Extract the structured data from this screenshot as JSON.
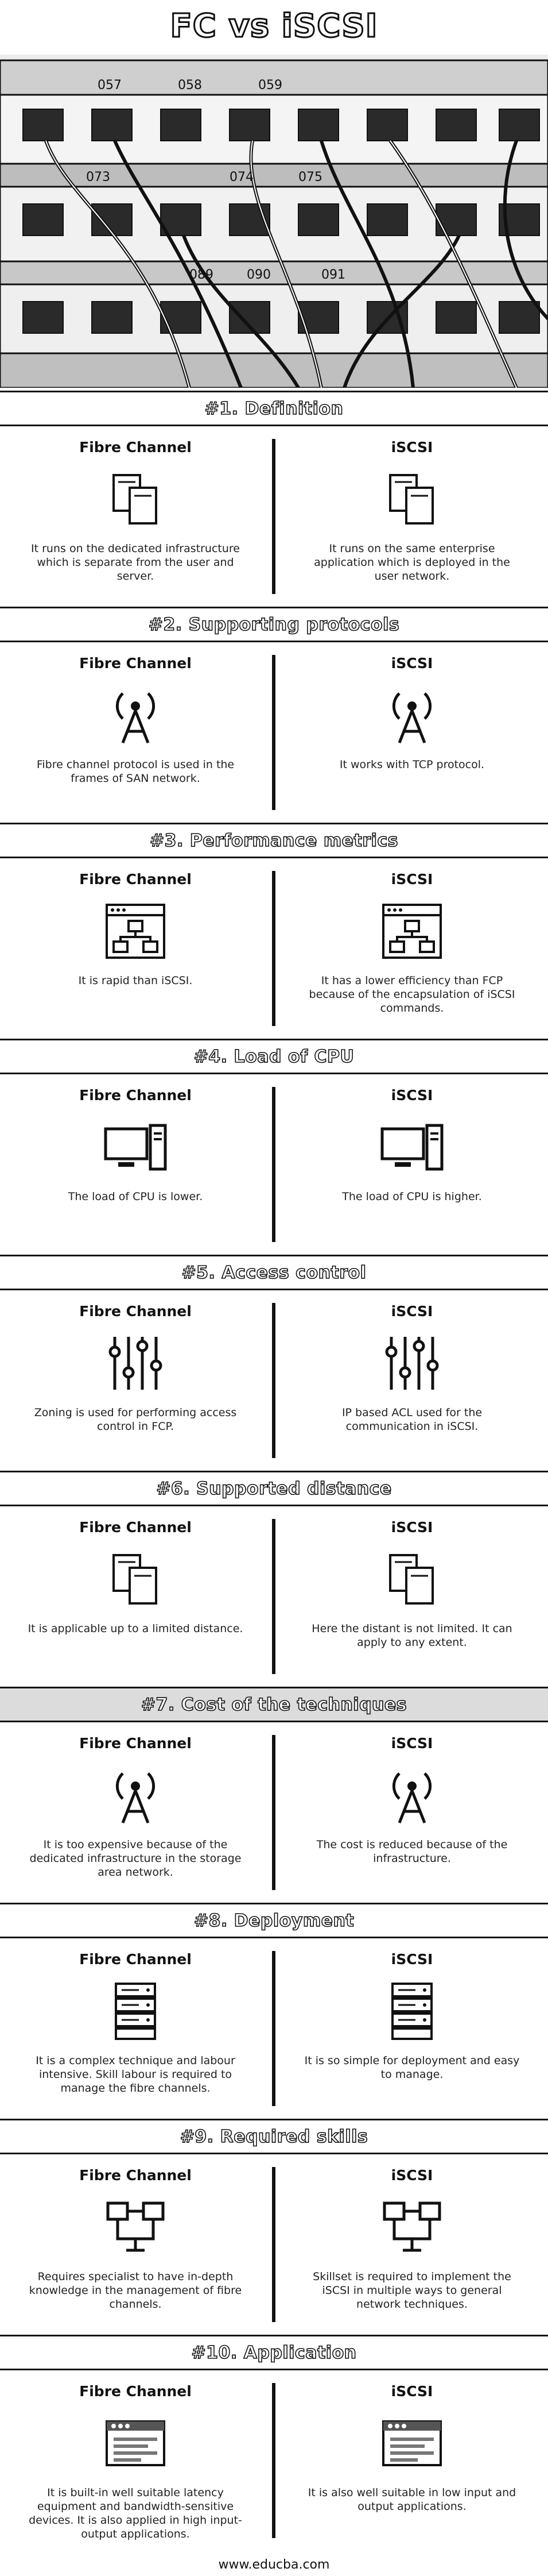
{
  "title": "FC vs iSCSI",
  "hero": {
    "port_labels": [
      "057",
      "058",
      "059",
      "073",
      "074",
      "075",
      "089",
      "090",
      "091"
    ]
  },
  "sections": [
    {
      "heading": "#1. Definition",
      "left": {
        "title": "Fibre Channel",
        "icon": "document-icon",
        "text": "It runs on the dedicated infrastructure which is separate from the user and server."
      },
      "right": {
        "title": "iSCSI",
        "icon": "document-icon",
        "text": "It runs on the same enterprise application which is deployed in the user network."
      }
    },
    {
      "heading": "#2. Supporting protocols",
      "left": {
        "title": "Fibre Channel",
        "icon": "antenna-icon",
        "text": "Fibre channel protocol is used in the frames of SAN network."
      },
      "right": {
        "title": "iSCSI",
        "icon": "antenna-icon",
        "text": "It works with TCP protocol."
      }
    },
    {
      "heading": "#3. Performance metrics",
      "left": {
        "title": "Fibre Channel",
        "icon": "sitemap-window-icon",
        "text": "It is rapid than iSCSI."
      },
      "right": {
        "title": "iSCSI",
        "icon": "sitemap-window-icon",
        "text": "It has a lower efficiency than FCP because of the encapsulation of iSCSI commands."
      }
    },
    {
      "heading": "#4. Load of CPU",
      "left": {
        "title": "Fibre Channel",
        "icon": "computer-icon",
        "text": "The load of CPU is lower."
      },
      "right": {
        "title": "iSCSI",
        "icon": "computer-icon",
        "text": "The load of CPU is higher."
      }
    },
    {
      "heading": "#5. Access control",
      "left": {
        "title": "Fibre Channel",
        "icon": "sliders-icon",
        "text": "Zoning is used for performing access control in FCP."
      },
      "right": {
        "title": "iSCSI",
        "icon": "sliders-icon",
        "text": "IP based ACL used for the communication in iSCSI."
      }
    },
    {
      "heading": "#6. Supported distance",
      "left": {
        "title": "Fibre Channel",
        "icon": "document-icon",
        "text": "It is applicable up to a limited distance."
      },
      "right": {
        "title": "iSCSI",
        "icon": "document-icon",
        "text": "Here the distant is not limited. It can apply to any extent."
      }
    },
    {
      "heading": "#7. Cost of the techniques",
      "shaded": true,
      "left": {
        "title": "Fibre Channel",
        "icon": "antenna-icon",
        "text": "It is too expensive because of the dedicated infrastructure in the storage area network."
      },
      "right": {
        "title": "iSCSI",
        "icon": "antenna-icon",
        "text": "The cost is reduced because of the infrastructure."
      }
    },
    {
      "heading": "#8. Deployment",
      "left": {
        "title": "Fibre Channel",
        "icon": "server-icon",
        "text": "It is a complex technique and labour intensive. Skill labour is required to manage the fibre channels."
      },
      "right": {
        "title": "iSCSI",
        "icon": "server-icon",
        "text": "It is so simple for deployment and easy to manage."
      }
    },
    {
      "heading": "#9. Required skills",
      "left": {
        "title": "Fibre Channel",
        "icon": "network-icon",
        "text": "Requires specialist to have in-depth knowledge in the management of fibre channels."
      },
      "right": {
        "title": "iSCSI",
        "icon": "network-icon",
        "text": "Skillset is required to implement the iSCSI in multiple ways to general network techniques."
      }
    },
    {
      "heading": "#10. Application",
      "left": {
        "title": "Fibre Channel",
        "icon": "browser-window-icon",
        "text": "It is built-in well suitable latency equipment and bandwidth-sensitive devices. It is also applied in high input-output applications."
      },
      "right": {
        "title": "iSCSI",
        "icon": "browser-window-icon",
        "text": "It is also well suitable in low input and output applications."
      }
    }
  ],
  "footer": "www.educba.com"
}
